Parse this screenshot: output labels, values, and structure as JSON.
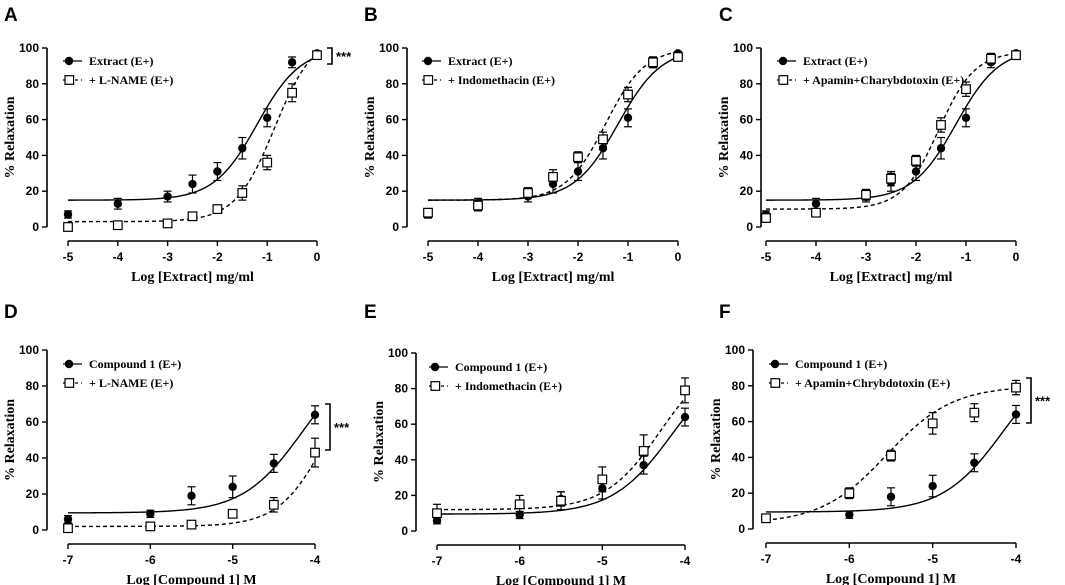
{
  "chart_data": [
    {
      "panel": "A",
      "type": "scatter",
      "title": "",
      "xlabel": "Log [Extract] mg/ml",
      "ylabel": "% Relaxation",
      "xlim": [
        -5,
        0
      ],
      "ylim": [
        0,
        100
      ],
      "xticks": [
        -5,
        -4,
        -3,
        -2,
        -1,
        0
      ],
      "yticks": [
        0,
        20,
        40,
        60,
        80,
        100
      ],
      "significance": "***",
      "series": [
        {
          "name": "Extract (E+)",
          "marker": "filled-circle",
          "line": "solid",
          "x": [
            -5,
            -4,
            -3,
            -2.5,
            -2,
            -1.5,
            -1,
            -0.5,
            0
          ],
          "y": [
            7,
            13,
            17,
            24,
            31,
            44,
            61,
            92,
            97
          ],
          "err": [
            2,
            3,
            3,
            5,
            5,
            6,
            5,
            3,
            1
          ],
          "fit": {
            "bottom": 15,
            "top": 100,
            "logEC50": -1.2,
            "hill": 1.0
          }
        },
        {
          "name": "+ L-NAME (E+)",
          "marker": "open-square",
          "line": "dashed",
          "x": [
            -5,
            -4,
            -3,
            -2.5,
            -2,
            -1.5,
            -1,
            -0.5,
            0
          ],
          "y": [
            0,
            1,
            2,
            6,
            10,
            19,
            36,
            75,
            96
          ],
          "err": [
            1,
            1,
            1,
            2,
            2,
            4,
            4,
            5,
            2
          ],
          "fit": {
            "bottom": 3,
            "top": 108,
            "logEC50": -0.85,
            "hill": 1.1
          }
        }
      ]
    },
    {
      "panel": "B",
      "type": "scatter",
      "title": "",
      "xlabel": "Log [Extract] mg/ml",
      "ylabel": "% Relaxation",
      "xlim": [
        -5,
        0
      ],
      "ylim": [
        0,
        100
      ],
      "xticks": [
        -5,
        -4,
        -3,
        -2,
        -1,
        0
      ],
      "yticks": [
        0,
        20,
        40,
        60,
        80,
        100
      ],
      "series": [
        {
          "name": "Extract (E+)",
          "marker": "filled-circle",
          "line": "solid",
          "x": [
            -5,
            -4,
            -3,
            -2.5,
            -2,
            -1.5,
            -1,
            -0.5,
            0
          ],
          "y": [
            7,
            13,
            17,
            24,
            31,
            44,
            61,
            92,
            97
          ],
          "err": [
            2,
            3,
            3,
            5,
            5,
            6,
            5,
            3,
            1
          ],
          "fit": {
            "bottom": 15,
            "top": 100,
            "logEC50": -1.2,
            "hill": 1.0
          }
        },
        {
          "name": "+ Indomethacin (E+)",
          "marker": "open-square",
          "line": "dashed",
          "x": [
            -5,
            -4,
            -3,
            -2.5,
            -2,
            -1.5,
            -1,
            -0.5,
            0
          ],
          "y": [
            8,
            12,
            19,
            28,
            39,
            49,
            74,
            92,
            95
          ],
          "err": [
            2,
            3,
            3,
            4,
            3,
            4,
            4,
            3,
            1
          ],
          "fit": {
            "bottom": 15,
            "top": 100,
            "logEC50": -1.45,
            "hill": 1.1
          }
        }
      ]
    },
    {
      "panel": "C",
      "type": "scatter",
      "title": "",
      "xlabel": "Log [Extract] mg/ml",
      "ylabel": "% Relaxation",
      "xlim": [
        -5,
        0
      ],
      "ylim": [
        0,
        100
      ],
      "xticks": [
        -5,
        -4,
        -3,
        -2,
        -1,
        0
      ],
      "yticks": [
        0,
        20,
        40,
        60,
        80,
        100
      ],
      "series": [
        {
          "name": "Extract (E+)",
          "marker": "filled-circle",
          "line": "solid",
          "x": [
            -5,
            -4,
            -3,
            -2.5,
            -2,
            -1.5,
            -1,
            -0.5,
            0
          ],
          "y": [
            7,
            13,
            17,
            25,
            31,
            44,
            61,
            92,
            97
          ],
          "err": [
            2,
            3,
            3,
            5,
            5,
            6,
            5,
            3,
            1
          ],
          "fit": {
            "bottom": 15,
            "top": 100,
            "logEC50": -1.2,
            "hill": 1.0
          }
        },
        {
          "name": "+ Apamin+Charybdotoxin (E+)",
          "marker": "open-square",
          "line": "dashed",
          "x": [
            -5,
            -4,
            -3,
            -2.5,
            -2,
            -1.5,
            -1,
            -0.5,
            0
          ],
          "y": [
            5,
            8,
            18,
            27,
            37,
            57,
            77,
            94,
            96
          ],
          "err": [
            2,
            2,
            3,
            4,
            3,
            4,
            4,
            3,
            1
          ],
          "fit": {
            "bottom": 10,
            "top": 98,
            "logEC50": -1.55,
            "hill": 1.2
          }
        }
      ]
    },
    {
      "panel": "D",
      "type": "scatter",
      "title": "",
      "xlabel": "Log [Compound 1] M",
      "ylabel": "% Relaxation",
      "xlim": [
        -7,
        -4
      ],
      "ylim": [
        0,
        100
      ],
      "xticks": [
        -7,
        -6,
        -5,
        -4
      ],
      "yticks": [
        0,
        20,
        40,
        60,
        80,
        100
      ],
      "significance": "***",
      "series": [
        {
          "name": "Compound 1 (E+)",
          "marker": "filled-circle",
          "line": "solid",
          "x": [
            -7,
            -6,
            -5.5,
            -5,
            -4.5,
            -4
          ],
          "y": [
            6,
            9,
            19,
            24,
            37,
            64
          ],
          "err": [
            2,
            2,
            5,
            6,
            5,
            5
          ],
          "fit": {
            "bottom": 9.5,
            "top": 100,
            "logEC50": -4.15,
            "hill": 1.2
          }
        },
        {
          "name": "+ L-NAME (E+)",
          "marker": "open-square",
          "line": "dashed",
          "x": [
            -7,
            -6,
            -5.5,
            -5,
            -4.5,
            -4
          ],
          "y": [
            1,
            2,
            3,
            9,
            14,
            43
          ],
          "err": [
            1,
            1,
            1,
            2,
            4,
            8
          ],
          "fit": {
            "bottom": 2,
            "top": 100,
            "logEC50": -3.85,
            "hill": 1.5
          }
        }
      ]
    },
    {
      "panel": "E",
      "type": "scatter",
      "title": "",
      "xlabel": "Log [Compound 1] M",
      "ylabel": "% Relaxation",
      "xlim": [
        -7,
        -4
      ],
      "ylim": [
        0,
        100
      ],
      "xticks": [
        -7,
        -6,
        -5,
        -4
      ],
      "yticks": [
        0,
        20,
        40,
        60,
        80,
        100
      ],
      "series": [
        {
          "name": "Compound 1 (E+)",
          "marker": "filled-circle",
          "line": "solid",
          "x": [
            -7,
            -6,
            -5.5,
            -5,
            -4.5,
            -4
          ],
          "y": [
            6,
            9,
            18,
            24,
            37,
            64
          ],
          "err": [
            2,
            2,
            4,
            6,
            5,
            5
          ],
          "fit": {
            "bottom": 9.5,
            "top": 100,
            "logEC50": -4.15,
            "hill": 1.2
          }
        },
        {
          "name": "+ Indomethacin (E+)",
          "marker": "open-square",
          "line": "dashed",
          "x": [
            -7,
            -6,
            -5.5,
            -5,
            -4.5,
            -4
          ],
          "y": [
            10,
            15,
            17,
            29,
            45,
            79
          ],
          "err": [
            5,
            5,
            5,
            7,
            9,
            7
          ],
          "fit": {
            "bottom": 12,
            "top": 100,
            "logEC50": -4.3,
            "hill": 1.3
          }
        }
      ]
    },
    {
      "panel": "F",
      "type": "scatter",
      "title": "",
      "xlabel": "Log [Compound 1] M",
      "ylabel": "% Relaxation",
      "xlim": [
        -7,
        -4
      ],
      "ylim": [
        0,
        100
      ],
      "xticks": [
        -7,
        -6,
        -5,
        -4
      ],
      "yticks": [
        0,
        20,
        40,
        60,
        80,
        100
      ],
      "significance": "***",
      "series": [
        {
          "name": "Compound 1 (E+)",
          "marker": "filled-circle",
          "line": "solid",
          "x": [
            -7,
            -6,
            -5.5,
            -5,
            -4.5,
            -4
          ],
          "y": [
            6,
            8,
            18,
            24,
            37,
            64
          ],
          "err": [
            2,
            2,
            5,
            6,
            5,
            5
          ],
          "fit": {
            "bottom": 9.5,
            "top": 100,
            "logEC50": -4.15,
            "hill": 1.2
          }
        },
        {
          "name": "+ Apamin+Chrybdotoxin (E+)",
          "marker": "open-square",
          "line": "dashed",
          "x": [
            -7,
            -6,
            -5.5,
            -5,
            -4.5,
            -4
          ],
          "y": [
            6,
            20,
            41,
            59,
            65,
            79
          ],
          "err": [
            2,
            3,
            3,
            6,
            5,
            4
          ],
          "fit": {
            "bottom": 3,
            "top": 80,
            "logEC50": -5.55,
            "hill": 1.1
          }
        }
      ]
    }
  ]
}
